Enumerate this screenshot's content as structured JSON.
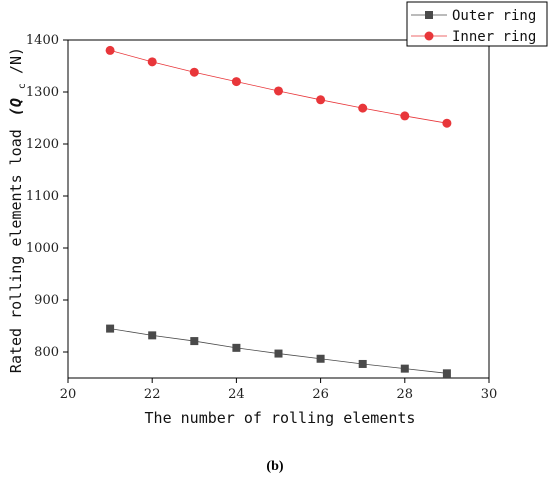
{
  "chart_data": {
    "type": "line",
    "title": "",
    "xlabel": "The number of rolling elements",
    "ylabel": "Rated rolling elements load",
    "ylabel_math": "(Q",
    "ylabel_sub": "c",
    "ylabel_unit": "/N)",
    "xlim": [
      20,
      30
    ],
    "ylim": [
      750,
      1400
    ],
    "x_ticks": [
      20,
      22,
      24,
      26,
      28,
      30
    ],
    "y_ticks": [
      800,
      900,
      1000,
      1100,
      1200,
      1300,
      1400
    ],
    "x": [
      21,
      22,
      23,
      24,
      25,
      26,
      27,
      28,
      29
    ],
    "series": [
      {
        "name": "Outer ring",
        "marker": "square",
        "color": "#4a4a4a",
        "values": [
          845,
          832,
          821,
          808,
          797,
          787,
          777,
          768,
          759
        ]
      },
      {
        "name": "Inner ring",
        "marker": "circle",
        "color": "#e8363a",
        "values": [
          1380,
          1358,
          1338,
          1320,
          1302,
          1285,
          1269,
          1254,
          1240
        ]
      }
    ],
    "legend_position": "top-right",
    "grid": false
  },
  "caption": {
    "open": "(",
    "letter": "b",
    "close": ")"
  }
}
